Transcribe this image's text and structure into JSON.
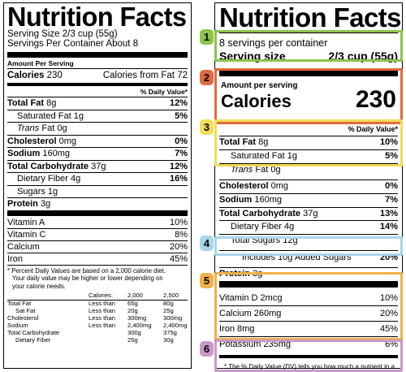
{
  "colors": {
    "green": "#8cc44a",
    "red": "#e06b40",
    "yellow": "#f1dd5a",
    "blue": "#a9d6ea",
    "orange": "#f0b14a",
    "purple": "#c99ac8"
  },
  "old_label": {
    "title": "Nutrition Facts",
    "serving_size": "Serving Size 2/3 cup (55g)",
    "servings_per_container": "Servings Per Container About 8",
    "amount_per_serving": "Amount Per Serving",
    "calories_label": "Calories",
    "calories_value": "230",
    "calories_from_fat": "Calories from Fat 72",
    "dv_header": "% Daily Value*",
    "nutrients": [
      {
        "name": "Total Fat",
        "amount": "8g",
        "dv": "12%"
      },
      {
        "name": "Saturated Fat",
        "amount": "1g",
        "dv": "5%"
      },
      {
        "name": "Trans",
        "amount": "Fat 0g",
        "dv": ""
      },
      {
        "name": "Cholesterol",
        "amount": "0mg",
        "dv": "0%"
      },
      {
        "name": "Sodium",
        "amount": "160mg",
        "dv": "7%"
      },
      {
        "name": "Total Carbohydrate",
        "amount": "37g",
        "dv": "12%"
      },
      {
        "name": "Dietary Fiber",
        "amount": "4g",
        "dv": "16%"
      },
      {
        "name": "Sugars",
        "amount": "1g",
        "dv": ""
      },
      {
        "name": "Protein",
        "amount": "3g",
        "dv": ""
      }
    ],
    "vitamins": [
      {
        "name": "Vitamin A",
        "dv": "10%"
      },
      {
        "name": "Vitamin C",
        "dv": "8%"
      },
      {
        "name": "Calcium",
        "dv": "20%"
      },
      {
        "name": "Iron",
        "dv": "45%"
      }
    ],
    "footnote_1": "* Percent Daily Values are based on a 2,000 calorie diet.",
    "footnote_2": "Your daily value may be higher or lower depending on",
    "footnote_3": "your calorie needs.",
    "table_header": [
      "",
      "Calories:",
      "2,000",
      "2,500"
    ],
    "table_rows": [
      [
        "Total Fat",
        "Less than",
        "65g",
        "80g"
      ],
      [
        "Sat Fat",
        "Less than",
        "20g",
        "25g"
      ],
      [
        "Cholesterol",
        "Less than",
        "300mg",
        "300mg"
      ],
      [
        "Sodium",
        "Less than",
        "2,400mg",
        "2,400mg"
      ],
      [
        "Total Carbohydrate",
        "",
        "300g",
        "375g"
      ],
      [
        "Dietary Fiber",
        "",
        "25g",
        "30g"
      ]
    ]
  },
  "new_label": {
    "title": "Nutrition Facts",
    "servings_per_container": "8 servings per container",
    "serving_size_label": "Serving size",
    "serving_size_value": "2/3 cup (55g)",
    "amount_per_serving": "Amount per serving",
    "calories_label": "Calories",
    "calories_value": "230",
    "dv_header": "% Daily Value*",
    "nutrients": [
      {
        "name": "Total Fat",
        "amount": "8g",
        "dv": "10%"
      },
      {
        "name": "Saturated Fat",
        "amount": "1g",
        "dv": "5%"
      },
      {
        "name": "Trans",
        "amount": "Fat 0g",
        "dv": ""
      },
      {
        "name": "Cholesterol",
        "amount": "0mg",
        "dv": "0%"
      },
      {
        "name": "Sodium",
        "amount": "160mg",
        "dv": "7%"
      },
      {
        "name": "Total Carbohydrate",
        "amount": "37g",
        "dv": "13%"
      },
      {
        "name": "Dietary Fiber",
        "amount": "4g",
        "dv": "14%"
      },
      {
        "name": "Total Sugars",
        "amount": "12g",
        "dv": ""
      },
      {
        "name": "Includes 10g Added Sugars",
        "amount": "",
        "dv": "20%"
      },
      {
        "name": "Protein",
        "amount": "3g",
        "dv": ""
      }
    ],
    "vitamins": [
      {
        "name": "Vitamin D 2mcg",
        "dv": "10%"
      },
      {
        "name": "Calcium 260mg",
        "dv": "20%"
      },
      {
        "name": "Iron 8mg",
        "dv": "45%"
      },
      {
        "name": "Potassium 235mg",
        "dv": "6%"
      }
    ],
    "footnote": "* The % Daily Value (DV) tells you how much a nutrient in a serving of food contributes to a daily diet. 2,000 calories a day is used for general nutrition advice."
  },
  "badges": [
    "1",
    "2",
    "3",
    "4",
    "5",
    "6"
  ]
}
